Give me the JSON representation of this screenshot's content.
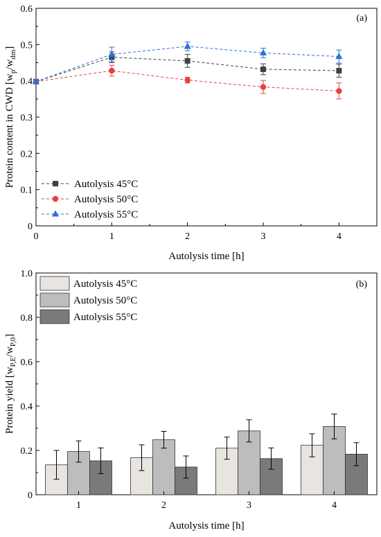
{
  "chart_data": [
    {
      "type": "line",
      "panel_label": "(a)",
      "xlabel": "Autolysis time [h]",
      "ylabel_main": "Protein content in CWD [w",
      "ylabel_sub1": "p",
      "ylabel_mid": "/w",
      "ylabel_sub2": "dm",
      "ylabel_end": "]",
      "xlim": [
        0,
        4.5
      ],
      "ylim": [
        0,
        0.6
      ],
      "xticks": [
        "0",
        "1",
        "2",
        "3",
        "4"
      ],
      "yticks": [
        "0",
        "0.1",
        "0.2",
        "0.3",
        "0.4",
        "0.5",
        "0.6"
      ],
      "x": [
        0,
        1,
        2,
        3,
        4
      ],
      "grid": false,
      "legend_position": "bottom-left",
      "series": [
        {
          "name": "Autolysis 45°C",
          "color": "#404040",
          "marker": "square",
          "values": [
            0.398,
            0.465,
            0.455,
            0.432,
            0.428
          ],
          "errors": [
            0.005,
            0.015,
            0.018,
            0.015,
            0.018
          ]
        },
        {
          "name": "Autolysis 50°C",
          "color": "#e8403a",
          "marker": "circle",
          "values": [
            0.398,
            0.428,
            0.402,
            0.383,
            0.372
          ],
          "errors": [
            0.005,
            0.015,
            0.008,
            0.018,
            0.022
          ]
        },
        {
          "name": "Autolysis 55°C",
          "color": "#2b6fd6",
          "marker": "triangle",
          "values": [
            0.398,
            0.473,
            0.495,
            0.477,
            0.467
          ],
          "errors": [
            0.005,
            0.02,
            0.012,
            0.013,
            0.018
          ]
        }
      ]
    },
    {
      "type": "bar",
      "panel_label": "(b)",
      "xlabel": "Autolysis time [h]",
      "ylabel_main": "Protein yield [w",
      "ylabel_sub1": "P,E",
      "ylabel_mid": "/w",
      "ylabel_sub2": "P,0",
      "ylabel_end": "]",
      "ylim": [
        0,
        1.0
      ],
      "categories": [
        "1",
        "2",
        "3",
        "4"
      ],
      "yticks": [
        "0",
        "0.2",
        "0.4",
        "0.6",
        "0.8",
        "1.0"
      ],
      "grid": false,
      "legend_position": "top-left",
      "series": [
        {
          "name": "Autolysis 45°C",
          "color": "#e8e4df",
          "values": [
            0.135,
            0.167,
            0.21,
            0.223
          ],
          "errors": [
            0.065,
            0.058,
            0.05,
            0.052
          ]
        },
        {
          "name": "Autolysis 50°C",
          "color": "#bdbdbd",
          "values": [
            0.195,
            0.248,
            0.288,
            0.308
          ],
          "errors": [
            0.048,
            0.038,
            0.05,
            0.056
          ]
        },
        {
          "name": "Autolysis 55°C",
          "color": "#7a7a7a",
          "values": [
            0.153,
            0.125,
            0.163,
            0.183
          ],
          "errors": [
            0.058,
            0.05,
            0.048,
            0.052
          ]
        }
      ]
    }
  ]
}
